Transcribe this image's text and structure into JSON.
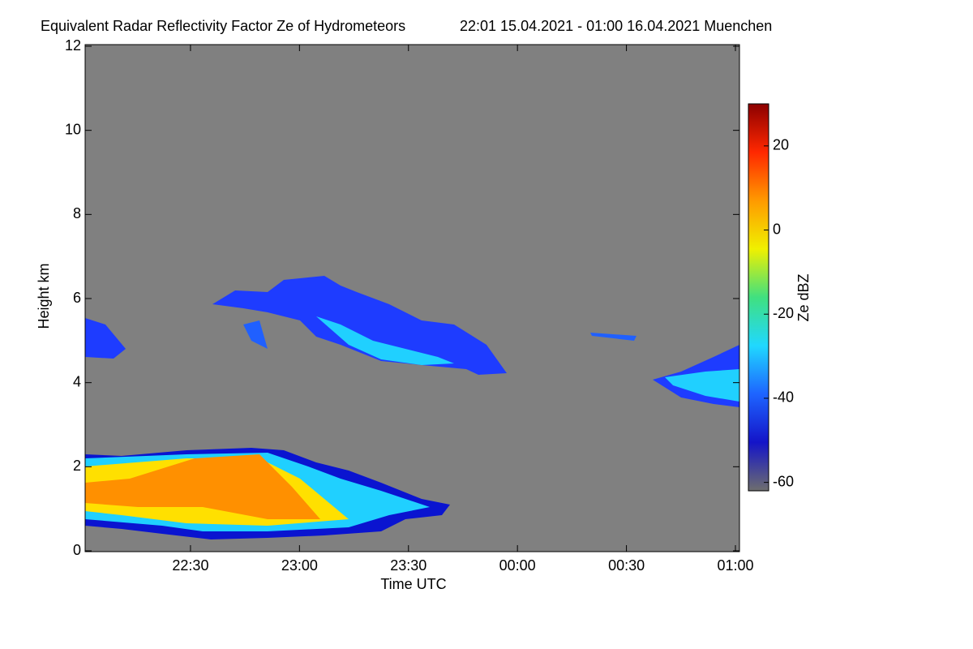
{
  "chart_data": {
    "type": "heatmap",
    "title": "Equivalent Radar Reflectivity Factor Ze of Hydrometeors",
    "subtitle": "22:01 15.04.2021 - 01:00 16.04.2021 Muenchen",
    "x_label": "Time UTC",
    "y_label": "Height km",
    "colorbar_label": "Ze dBZ",
    "xlim": [
      "22:01",
      "01:00"
    ],
    "xticks": [
      "22:30",
      "23:00",
      "23:30",
      "00:00",
      "00:30",
      "01:00"
    ],
    "ylim": [
      0,
      12
    ],
    "yticks": [
      0,
      2,
      4,
      6,
      8,
      10,
      12
    ],
    "zlim": [
      -62,
      30
    ],
    "zticks": [
      -60,
      -40,
      -20,
      0,
      20
    ],
    "colormap": [
      "#6e6e6e",
      "#1414c8",
      "#1e64ff",
      "#20d8ff",
      "#40e080",
      "#f0f000",
      "#ff9a00",
      "#ff2800",
      "#8c0000"
    ],
    "background": "#808080"
  }
}
